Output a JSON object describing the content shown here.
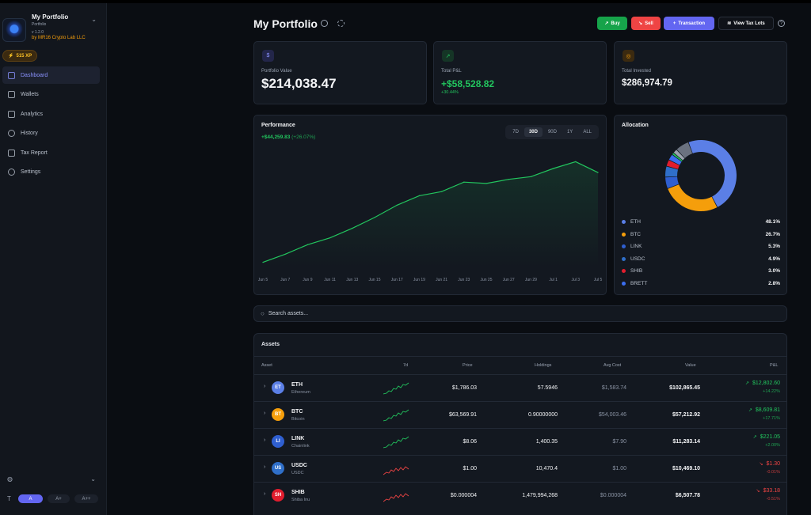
{
  "sidebar": {
    "brand_title": "My Portfolio",
    "brand_sub": "Portfolio",
    "version": "v 1.2.0",
    "by": "by MR16 Crypto Lab LLC",
    "xp": "515 XP",
    "items": [
      {
        "label": "Dashboard",
        "active": true,
        "icon": "grid-icon"
      },
      {
        "label": "Wallets",
        "active": false,
        "icon": "wallet-icon"
      },
      {
        "label": "Analytics",
        "active": false,
        "icon": "bar-chart-icon"
      },
      {
        "label": "History",
        "active": false,
        "icon": "clock-icon"
      },
      {
        "label": "Tax Report",
        "active": false,
        "icon": "document-icon"
      },
      {
        "label": "Settings",
        "active": false,
        "icon": "gear-icon"
      }
    ],
    "font_sizes": [
      "A",
      "A+",
      "A++"
    ]
  },
  "header": {
    "title": "My Portfolio",
    "buy": "Buy",
    "sell": "Sell",
    "transaction": "Transaction",
    "tax_lots": "View Tax Lots"
  },
  "stats": {
    "value_label": "Portfolio Value",
    "value": "$214,038.47",
    "pnl_label": "Total P&L",
    "pnl": "+$58,528.82",
    "pnl_pct": "+30.44%",
    "invested_label": "Total Invested",
    "invested": "$286,974.79"
  },
  "performance": {
    "title": "Performance",
    "change": "+$44,259.83",
    "change_pct": "(+26.07%)",
    "ranges": [
      "7D",
      "30D",
      "90D",
      "1Y",
      "ALL"
    ],
    "selected_range": "30D"
  },
  "chart_data": {
    "type": "area",
    "x": [
      "Jun 5",
      "Jun 7",
      "Jun 9",
      "Jun 11",
      "Jun 13",
      "Jun 15",
      "Jun 17",
      "Jun 19",
      "Jun 21",
      "Jun 23",
      "Jun 25",
      "Jun 27",
      "Jun 29",
      "Jul 1",
      "Jul 3",
      "Jul 5"
    ],
    "values": [
      170000,
      176000,
      183000,
      188000,
      195000,
      203000,
      212000,
      219000,
      222000,
      229000,
      228000,
      231000,
      233000,
      239000,
      244000,
      236000
    ],
    "color": "#22c55e"
  },
  "allocation": {
    "title": "Allocation",
    "items": [
      {
        "name": "ETH",
        "pct": "48.1%",
        "value": 48.1,
        "color": "#5b7fe6"
      },
      {
        "name": "BTC",
        "pct": "26.7%",
        "value": 26.7,
        "color": "#f59e0b"
      },
      {
        "name": "LINK",
        "pct": "5.3%",
        "value": 5.3,
        "color": "#2f5fd0"
      },
      {
        "name": "USDC",
        "pct": "4.9%",
        "value": 4.9,
        "color": "#2f6fc9"
      },
      {
        "name": "SHIB",
        "pct": "3.0%",
        "value": 3.0,
        "color": "#e11d2e"
      },
      {
        "name": "BRETT",
        "pct": "2.8%",
        "value": 2.8,
        "color": "#3b6ef0"
      }
    ],
    "extra_slices": [
      {
        "value": 1.0,
        "color": "#22c55e"
      },
      {
        "value": 2.0,
        "color": "#9ca3af"
      },
      {
        "value": 6.2,
        "color": "#6b7280"
      }
    ]
  },
  "search": {
    "placeholder": "Search assets..."
  },
  "assets": {
    "title": "Assets",
    "headers": [
      "Asset",
      "7d",
      "Price",
      "Holdings",
      "Avg Cost",
      "Value",
      "P&L"
    ],
    "rows": [
      {
        "sym": "ETH",
        "name": "Ethereum",
        "badge": "ET",
        "color": "#5b7fe6",
        "price": "$1,786.03",
        "holdings": "57.5946",
        "avg": "$1,583.74",
        "value": "$102,865.45",
        "pnl": "$12,802.60",
        "pnl_pct": "+14.22%",
        "up": true
      },
      {
        "sym": "BTC",
        "name": "Bitcoin",
        "badge": "BT",
        "color": "#f59e0b",
        "price": "$63,569.91",
        "holdings": "0.90000000",
        "avg": "$54,003.46",
        "value": "$57,212.92",
        "pnl": "$8,609.81",
        "pnl_pct": "+17.71%",
        "up": true
      },
      {
        "sym": "LINK",
        "name": "Chainlink",
        "badge": "LI",
        "color": "#2f5fd0",
        "price": "$8.06",
        "holdings": "1,400.35",
        "avg": "$7.90",
        "value": "$11,283.14",
        "pnl": "$221.05",
        "pnl_pct": "+2.00%",
        "up": true
      },
      {
        "sym": "USDC",
        "name": "USDC",
        "badge": "US",
        "color": "#2f6fc9",
        "price": "$1.00",
        "holdings": "10,470.4",
        "avg": "$1.00",
        "value": "$10,469.10",
        "pnl": "$1.30",
        "pnl_pct": "-0.01%",
        "up": false
      },
      {
        "sym": "SHIB",
        "name": "Shiba Inu",
        "badge": "SH",
        "color": "#e11d2e",
        "price": "$0.000004",
        "holdings": "1,479,994,268",
        "avg": "$0.000004",
        "value": "$6,507.78",
        "pnl": "$33.18",
        "pnl_pct": "-0.51%",
        "up": false
      }
    ]
  }
}
